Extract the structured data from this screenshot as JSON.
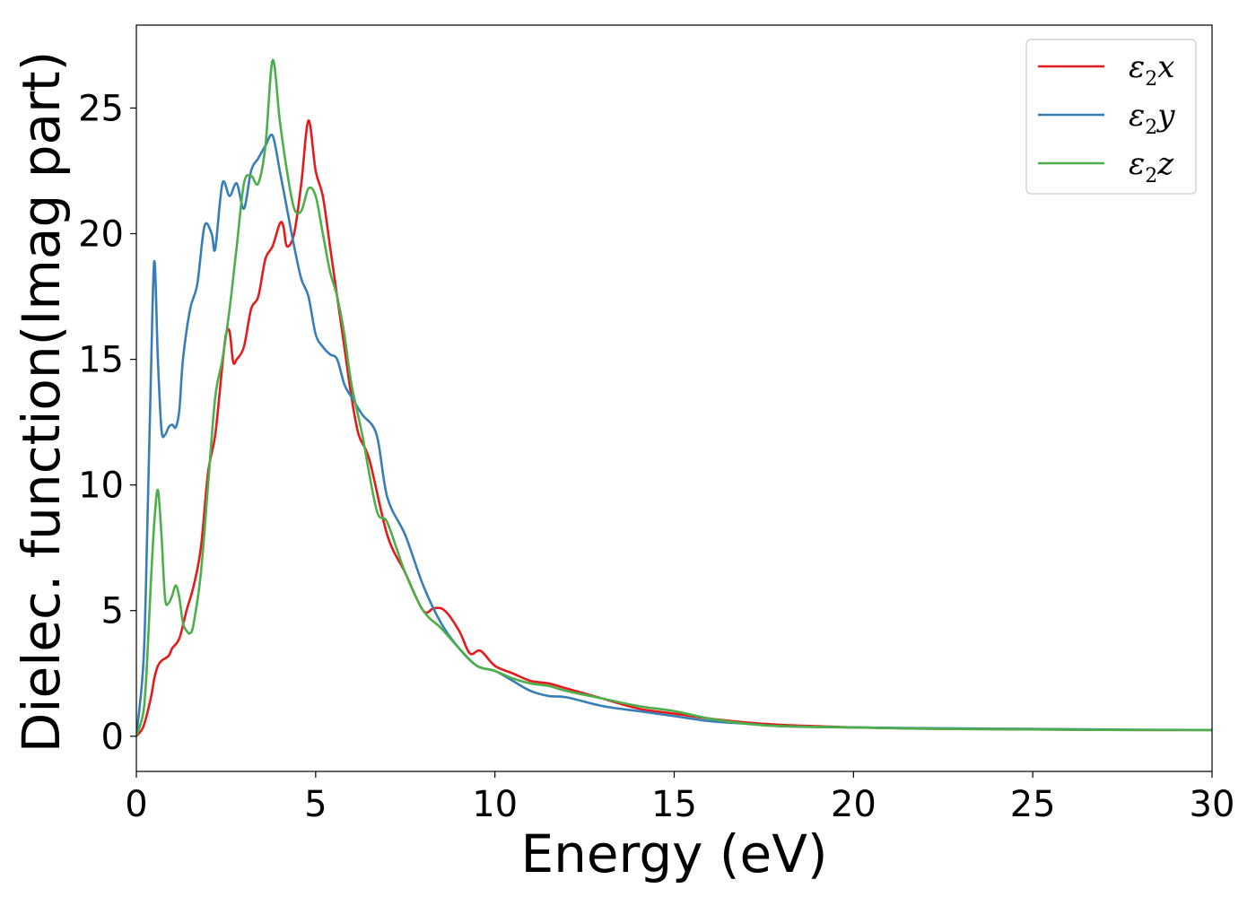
{
  "chart_data": {
    "type": "line",
    "xlabel": "Energy (eV)",
    "ylabel": "Dielec. function(Imag part)",
    "xlim": [
      0,
      30
    ],
    "ylim": [
      -1.4,
      28.3
    ],
    "xticks": [
      0,
      5,
      10,
      15,
      20,
      25,
      30
    ],
    "yticks": [
      0,
      5,
      10,
      15,
      20,
      25
    ],
    "grid": false,
    "legend_position": "top-right",
    "series": [
      {
        "name": "ε₂x",
        "legend": {
          "base": "ε",
          "sub": "2",
          "suffix": "x"
        },
        "color": "#e41a1c",
        "x": [
          0,
          0.2,
          0.4,
          0.5,
          0.6,
          0.7,
          0.9,
          1.0,
          1.2,
          1.4,
          1.6,
          1.8,
          2.0,
          2.2,
          2.4,
          2.5,
          2.6,
          2.7,
          2.8,
          3.0,
          3.2,
          3.4,
          3.6,
          3.8,
          4.0,
          4.1,
          4.2,
          4.4,
          4.6,
          4.8,
          5.0,
          5.2,
          5.4,
          5.6,
          5.8,
          6.0,
          6.2,
          6.5,
          7.0,
          7.5,
          8.0,
          8.3,
          8.6,
          9.0,
          9.3,
          9.6,
          10.0,
          10.5,
          11.0,
          11.5,
          12.0,
          12.5,
          13.0,
          14.0,
          15.0,
          16.0,
          17.0,
          18.0,
          19.0,
          20.0,
          22.0,
          24.0,
          26.0,
          28.0,
          30.0
        ],
        "values": [
          0,
          0.4,
          1.5,
          2.3,
          2.8,
          3.0,
          3.2,
          3.5,
          3.9,
          5.0,
          6.0,
          7.5,
          10.5,
          12.0,
          14.8,
          16.0,
          16.1,
          14.9,
          15.0,
          15.5,
          17.0,
          17.5,
          19.0,
          19.5,
          20.4,
          20.3,
          19.5,
          20.0,
          22.0,
          24.5,
          22.5,
          21.5,
          19.5,
          17.5,
          15.5,
          13.5,
          12.0,
          11.0,
          8.0,
          6.5,
          5.0,
          5.1,
          5.0,
          4.2,
          3.3,
          3.4,
          2.8,
          2.5,
          2.2,
          2.1,
          1.9,
          1.7,
          1.5,
          1.1,
          0.9,
          0.7,
          0.55,
          0.45,
          0.4,
          0.35,
          0.3,
          0.28,
          0.26,
          0.25,
          0.25
        ]
      },
      {
        "name": "ε₂y",
        "legend": {
          "base": "ε",
          "sub": "2",
          "suffix": "y"
        },
        "color": "#377eb8",
        "x": [
          0,
          0.2,
          0.3,
          0.4,
          0.5,
          0.6,
          0.7,
          0.8,
          0.9,
          1.0,
          1.1,
          1.2,
          1.3,
          1.5,
          1.7,
          1.9,
          2.1,
          2.2,
          2.4,
          2.6,
          2.8,
          3.0,
          3.2,
          3.4,
          3.6,
          3.8,
          4.0,
          4.2,
          4.4,
          4.6,
          4.8,
          5.0,
          5.2,
          5.4,
          5.6,
          5.8,
          6.0,
          6.3,
          6.7,
          7.0,
          7.5,
          8.0,
          8.5,
          9.0,
          9.5,
          10.0,
          10.5,
          11.0,
          11.5,
          12.0,
          13.0,
          14.0,
          15.0,
          16.0,
          17.0,
          18.0,
          20.0,
          22.0,
          24.0,
          26.0,
          28.0,
          30.0
        ],
        "values": [
          0,
          3.0,
          8.0,
          14.0,
          18.9,
          15.0,
          12.2,
          12.0,
          12.3,
          12.4,
          12.3,
          13.0,
          15.0,
          17.0,
          18.0,
          20.3,
          20.0,
          19.4,
          22.0,
          21.5,
          22.0,
          21.0,
          22.5,
          23.0,
          23.5,
          23.9,
          22.5,
          21.0,
          19.5,
          18.2,
          17.5,
          16.0,
          15.5,
          15.2,
          15.0,
          14.0,
          13.5,
          12.8,
          12.0,
          9.5,
          8.0,
          6.0,
          4.5,
          3.5,
          2.8,
          2.6,
          2.2,
          1.8,
          1.6,
          1.55,
          1.2,
          1.0,
          0.8,
          0.6,
          0.5,
          0.4,
          0.35,
          0.32,
          0.3,
          0.28,
          0.26,
          0.25
        ]
      },
      {
        "name": "ε₂z",
        "legend": {
          "base": "ε",
          "sub": "2",
          "suffix": "z"
        },
        "color": "#4daf4a",
        "x": [
          0,
          0.2,
          0.3,
          0.4,
          0.5,
          0.6,
          0.7,
          0.8,
          0.9,
          1.0,
          1.1,
          1.2,
          1.3,
          1.4,
          1.5,
          1.6,
          1.8,
          2.0,
          2.2,
          2.4,
          2.6,
          2.8,
          3.0,
          3.2,
          3.4,
          3.6,
          3.8,
          4.0,
          4.2,
          4.4,
          4.6,
          4.8,
          5.0,
          5.2,
          5.4,
          5.6,
          5.8,
          6.0,
          6.3,
          6.7,
          7.0,
          7.5,
          8.0,
          8.5,
          9.0,
          9.5,
          10.0,
          10.5,
          11.0,
          11.5,
          12.0,
          13.0,
          14.0,
          15.0,
          16.0,
          17.0,
          18.0,
          20.0,
          22.0,
          24.0,
          26.0,
          28.0,
          30.0
        ],
        "values": [
          0,
          1.0,
          3.0,
          6.0,
          8.5,
          9.8,
          8.0,
          5.5,
          5.3,
          5.6,
          6.0,
          5.5,
          4.5,
          4.2,
          4.1,
          4.5,
          6.5,
          10.0,
          13.5,
          15.0,
          17.0,
          19.5,
          22.0,
          22.3,
          22.0,
          23.5,
          26.9,
          24.5,
          22.5,
          21.0,
          20.9,
          21.8,
          21.5,
          20.0,
          18.5,
          17.5,
          16.0,
          14.0,
          12.0,
          9.0,
          8.5,
          6.5,
          5.0,
          4.3,
          3.5,
          2.8,
          2.6,
          2.3,
          2.1,
          2.0,
          1.8,
          1.5,
          1.2,
          1.0,
          0.7,
          0.5,
          0.4,
          0.35,
          0.3,
          0.28,
          0.26,
          0.25,
          0.25
        ]
      }
    ]
  }
}
